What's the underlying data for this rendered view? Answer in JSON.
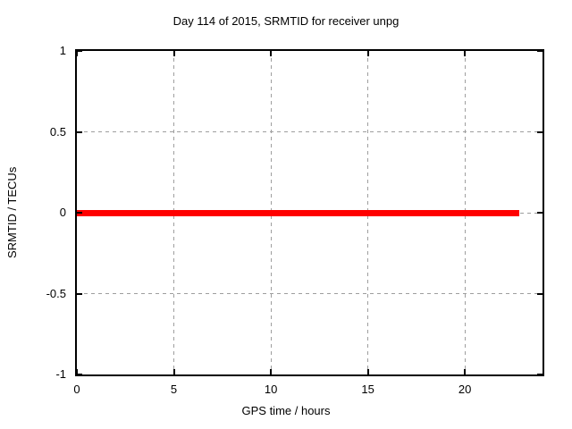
{
  "chart_data": {
    "type": "line",
    "title": "Day 114 of 2015, SRMTID for receiver unpg",
    "x_axis": {
      "label": "GPS time / hours",
      "min": 0,
      "max": 24,
      "ticks": [
        {
          "value": 0,
          "label": "0"
        },
        {
          "value": 5,
          "label": "5"
        },
        {
          "value": 10,
          "label": "10"
        },
        {
          "value": 15,
          "label": "15"
        },
        {
          "value": 20,
          "label": "20"
        }
      ]
    },
    "y_axis": {
      "label": "SRMTID / TECUs",
      "min": -1,
      "max": 1,
      "ticks": [
        {
          "value": 1,
          "label": "1"
        },
        {
          "value": 0.5,
          "label": "0.5"
        },
        {
          "value": 0,
          "label": "0"
        },
        {
          "value": -0.5,
          "label": "-0.5"
        },
        {
          "value": -1,
          "label": "-1"
        }
      ]
    },
    "grid": true,
    "legend": "none",
    "series": [
      {
        "name": "SRMTID",
        "color": "#ff0000",
        "line_width": 7,
        "points": [
          [
            0,
            0
          ],
          [
            22.8,
            0
          ]
        ]
      }
    ]
  },
  "colors": {
    "background": "#ffffff",
    "border": "#000000",
    "grid": "#9e9e9e",
    "text": "#000000",
    "series": "#ff0000"
  }
}
